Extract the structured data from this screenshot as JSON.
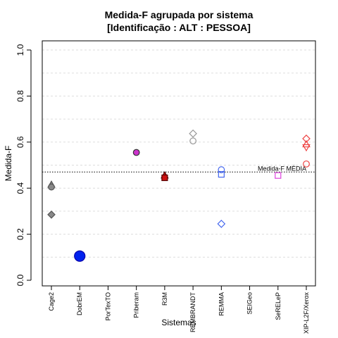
{
  "chart_data": {
    "type": "scatter",
    "title_line1": "Medida-F agrupada por sistema",
    "title_line2": "[Identificação : ALT : PESSOA]",
    "xlabel": "Sistemas",
    "ylabel": "Medida-F",
    "ylim": [
      0,
      1
    ],
    "yticks": [
      0.0,
      0.2,
      0.4,
      0.6,
      0.8,
      1.0
    ],
    "ytick_labels": [
      "0.0",
      "0.2",
      "0.4",
      "0.6",
      "0.8",
      "1.0"
    ],
    "grid": true,
    "categories": [
      "Cage2",
      "DobrEM",
      "PorTexTO",
      "Priberam",
      "R3M",
      "REMBRANDT",
      "REMMA",
      "SEIGeo",
      "SeRELeP",
      "XIP-L2F/Xerox"
    ],
    "reference_line": {
      "label": "Medida-F MÉDIA",
      "value": 0.47
    },
    "points": [
      {
        "category": "Cage2",
        "value": 0.415,
        "shape": "triangle",
        "color": "#555555",
        "fill": "#888888"
      },
      {
        "category": "Cage2",
        "value": 0.405,
        "shape": "circle",
        "color": "#555555",
        "fill": "#888888"
      },
      {
        "category": "Cage2",
        "value": 0.285,
        "shape": "diamond",
        "color": "#555555",
        "fill": "#888888"
      },
      {
        "category": "DobrEM",
        "value": 0.105,
        "shape": "circle-large",
        "color": "#0000aa",
        "fill": "#0022ee"
      },
      {
        "category": "Priberam",
        "value": 0.555,
        "shape": "circle",
        "color": "#333333",
        "fill": "#cc33cc"
      },
      {
        "category": "R3M",
        "value": 0.455,
        "shape": "triangle",
        "color": "#550000",
        "fill": "#cc1111"
      },
      {
        "category": "R3M",
        "value": 0.445,
        "shape": "square",
        "color": "#550000",
        "fill": "#cc1111"
      },
      {
        "category": "REMBRANDT",
        "value": 0.637,
        "shape": "diamond",
        "color": "#999999",
        "fill": "none"
      },
      {
        "category": "REMBRANDT",
        "value": 0.605,
        "shape": "circle",
        "color": "#999999",
        "fill": "none"
      },
      {
        "category": "REMMA",
        "value": 0.48,
        "shape": "circle",
        "color": "#4466ee",
        "fill": "none"
      },
      {
        "category": "REMMA",
        "value": 0.46,
        "shape": "square",
        "color": "#4466ee",
        "fill": "none"
      },
      {
        "category": "REMMA",
        "value": 0.245,
        "shape": "diamond",
        "color": "#4466ee",
        "fill": "none"
      },
      {
        "category": "SeRELeP",
        "value": 0.455,
        "shape": "square",
        "color": "#dd44dd",
        "fill": "none"
      },
      {
        "category": "XIP-L2F/Xerox",
        "value": 0.615,
        "shape": "diamond",
        "color": "#ee4444",
        "fill": "none"
      },
      {
        "category": "XIP-L2F/Xerox",
        "value": 0.59,
        "shape": "triangle",
        "color": "#ee4444",
        "fill": "none"
      },
      {
        "category": "XIP-L2F/Xerox",
        "value": 0.578,
        "shape": "triangle-down",
        "color": "#ee4444",
        "fill": "none"
      },
      {
        "category": "XIP-L2F/Xerox",
        "value": 0.505,
        "shape": "circle",
        "color": "#ee4444",
        "fill": "none"
      }
    ]
  }
}
